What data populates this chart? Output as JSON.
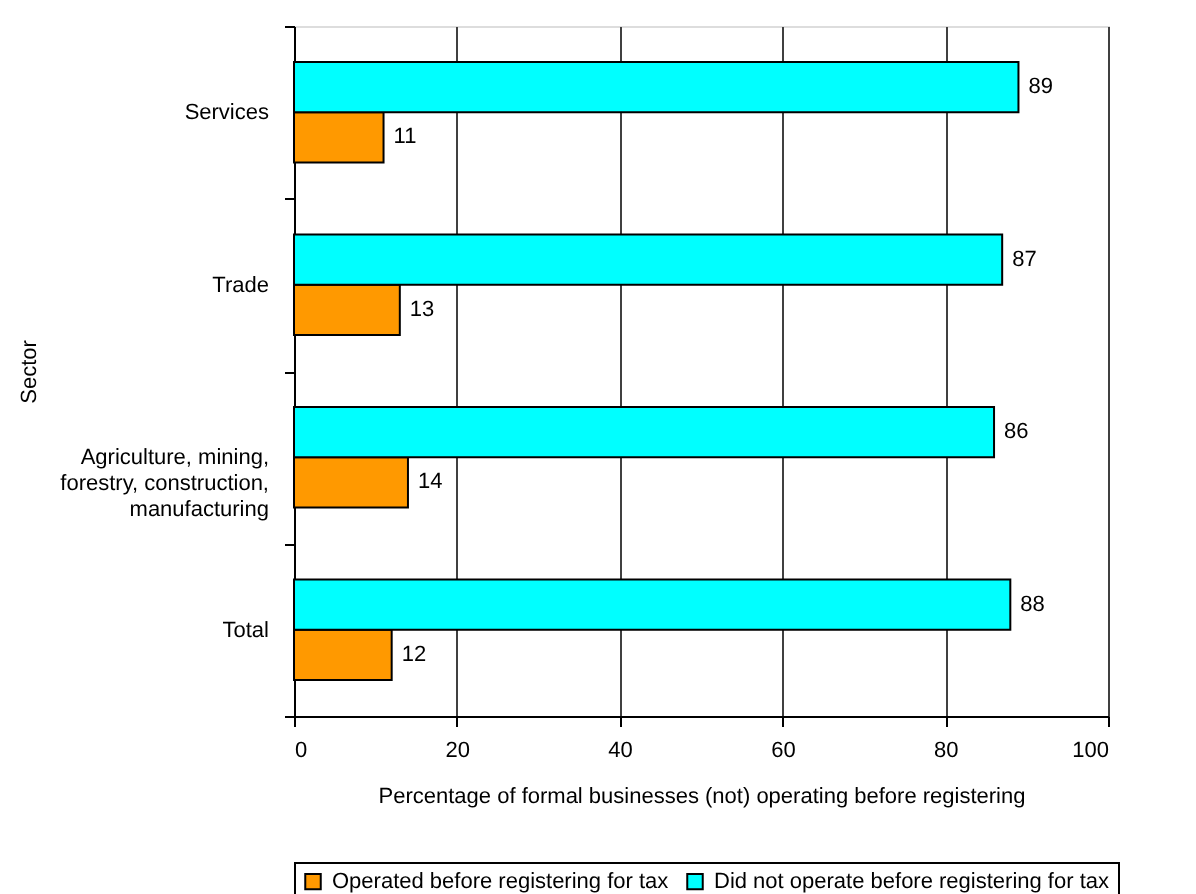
{
  "chart_data": {
    "type": "bar",
    "orientation": "horizontal",
    "categories": [
      "Services",
      "Trade",
      "Agriculture, mining, forestry, construction, manufacturing",
      "Total"
    ],
    "series": [
      {
        "name": "Operated before registering for tax",
        "color": "#ff9900",
        "values": [
          11,
          13,
          14,
          12
        ]
      },
      {
        "name": "Did not operate before registering for tax",
        "color": "#00ffff",
        "values": [
          89,
          87,
          86,
          88
        ]
      }
    ],
    "xlabel": "Percentage of formal businesses (not) operating before registering",
    "ylabel": "Sector",
    "xlim": [
      0,
      100
    ],
    "xticks": [
      0,
      20,
      40,
      60,
      80,
      100
    ],
    "grid": "x",
    "legend": "bottom",
    "data_labels": true
  }
}
